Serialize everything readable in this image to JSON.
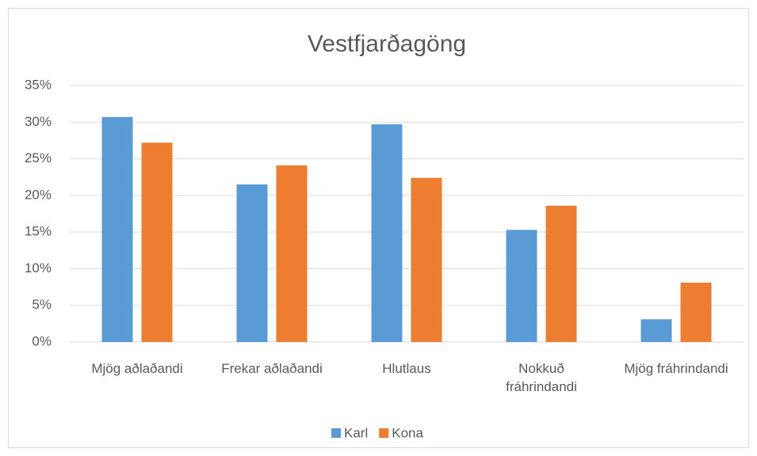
{
  "chart_data": {
    "type": "bar",
    "title": "Vestfjarðagöng",
    "categories": [
      "Mjög aðlaðandi",
      "Frekar aðlaðandi",
      "Hlutlaus",
      "Nokkuð fráhrindandi",
      "Mjög fráhrindandi"
    ],
    "series": [
      {
        "name": "Karl",
        "color": "#5b9bd5",
        "values": [
          30.7,
          21.5,
          29.7,
          15.3,
          3.1
        ]
      },
      {
        "name": "Kona",
        "color": "#ed7d31",
        "values": [
          27.2,
          24.1,
          22.4,
          18.6,
          8.1
        ]
      }
    ],
    "ylim": [
      0,
      35
    ],
    "yticks": [
      {
        "value": 0,
        "label": "0%"
      },
      {
        "value": 5,
        "label": "5%"
      },
      {
        "value": 10,
        "label": "10%"
      },
      {
        "value": 15,
        "label": "15%"
      },
      {
        "value": 20,
        "label": "20%"
      },
      {
        "value": 25,
        "label": "25%"
      },
      {
        "value": 30,
        "label": "30%"
      },
      {
        "value": 35,
        "label": "35%"
      }
    ],
    "grid": true,
    "legend": "bottom"
  }
}
